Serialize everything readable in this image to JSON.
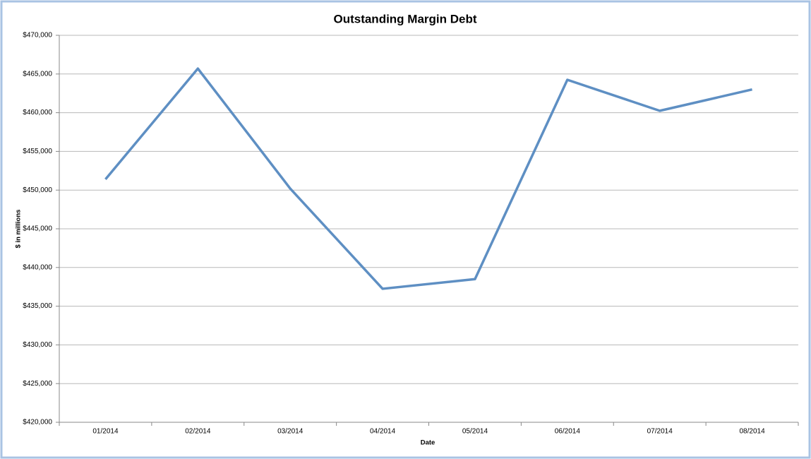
{
  "chart_data": {
    "type": "line",
    "title": "Outstanding Margin Debt",
    "x_label": "Date",
    "y_label": "$ in millions",
    "categories": [
      "01/2014",
      "02/2014",
      "03/2014",
      "04/2014",
      "05/2014",
      "06/2014",
      "07/2014",
      "08/2014"
    ],
    "series": [
      {
        "name": "Outstanding Margin Debt",
        "color": "#5e8fc3",
        "values": [
          451400,
          465700,
          450200,
          437250,
          438500,
          464250,
          460250,
          463000
        ]
      }
    ],
    "ylim": [
      420000,
      470000
    ],
    "yticks": [
      {
        "value": 420000,
        "label": "$420,000"
      },
      {
        "value": 425000,
        "label": "$425,000"
      },
      {
        "value": 430000,
        "label": "$430,000"
      },
      {
        "value": 435000,
        "label": "$435,000"
      },
      {
        "value": 440000,
        "label": "$440,000"
      },
      {
        "value": 445000,
        "label": "$445,000"
      },
      {
        "value": 450000,
        "label": "$450,000"
      },
      {
        "value": 455000,
        "label": "$455,000"
      },
      {
        "value": 460000,
        "label": "$460,000"
      },
      {
        "value": 465000,
        "label": "$465,000"
      },
      {
        "value": 470000,
        "label": "$470,000"
      }
    ],
    "grid": true
  }
}
